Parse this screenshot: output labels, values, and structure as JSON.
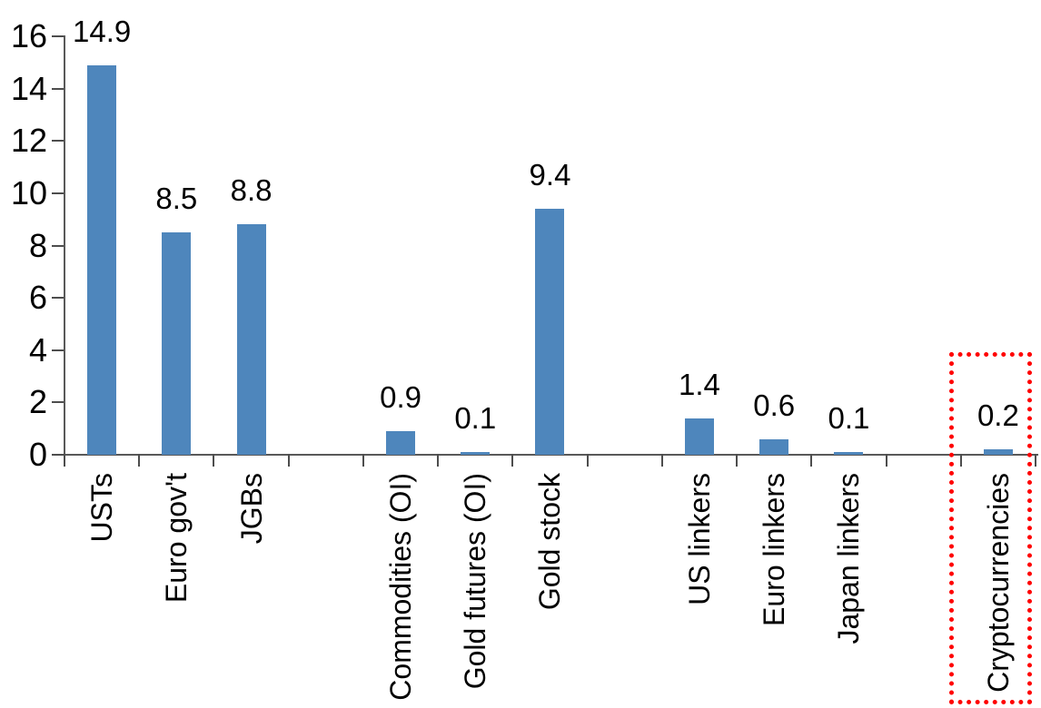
{
  "chart_data": {
    "type": "bar",
    "title": "",
    "categories": [
      "USTs",
      "Euro gov't",
      "JGBs",
      "Commodities (OI)",
      "Gold futures (OI)",
      "Gold stock",
      "US linkers",
      "Euro linkers",
      "Japan linkers",
      "Cryptocurrencies"
    ],
    "values": [
      14.9,
      8.5,
      8.8,
      0.9,
      0.1,
      9.4,
      1.4,
      0.6,
      0.1,
      0.2
    ],
    "value_labels": [
      "14.9",
      "8.5",
      "8.8",
      "0.9",
      "0.1",
      "9.4",
      "1.4",
      "0.6",
      "0.1",
      "0.2"
    ],
    "group_gaps_after_index": [
      2,
      5,
      8
    ],
    "xlabel": "",
    "ylabel": "",
    "ylim": [
      0,
      16
    ],
    "yticks": [
      0,
      2,
      4,
      6,
      8,
      10,
      12,
      14,
      16
    ],
    "ytick_labels": [
      "0",
      "2",
      "4",
      "6",
      "8",
      "10",
      "12",
      "14",
      "16"
    ],
    "grid": false,
    "legend_position": "none",
    "highlight": {
      "category": "Cryptocurrencies",
      "style": "red-dotted-box"
    },
    "colors": {
      "bar": "#4E86BC",
      "highlight_box": "#FF0000",
      "axis": "#595959",
      "text": "#000000",
      "background": "#FFFFFF"
    }
  }
}
